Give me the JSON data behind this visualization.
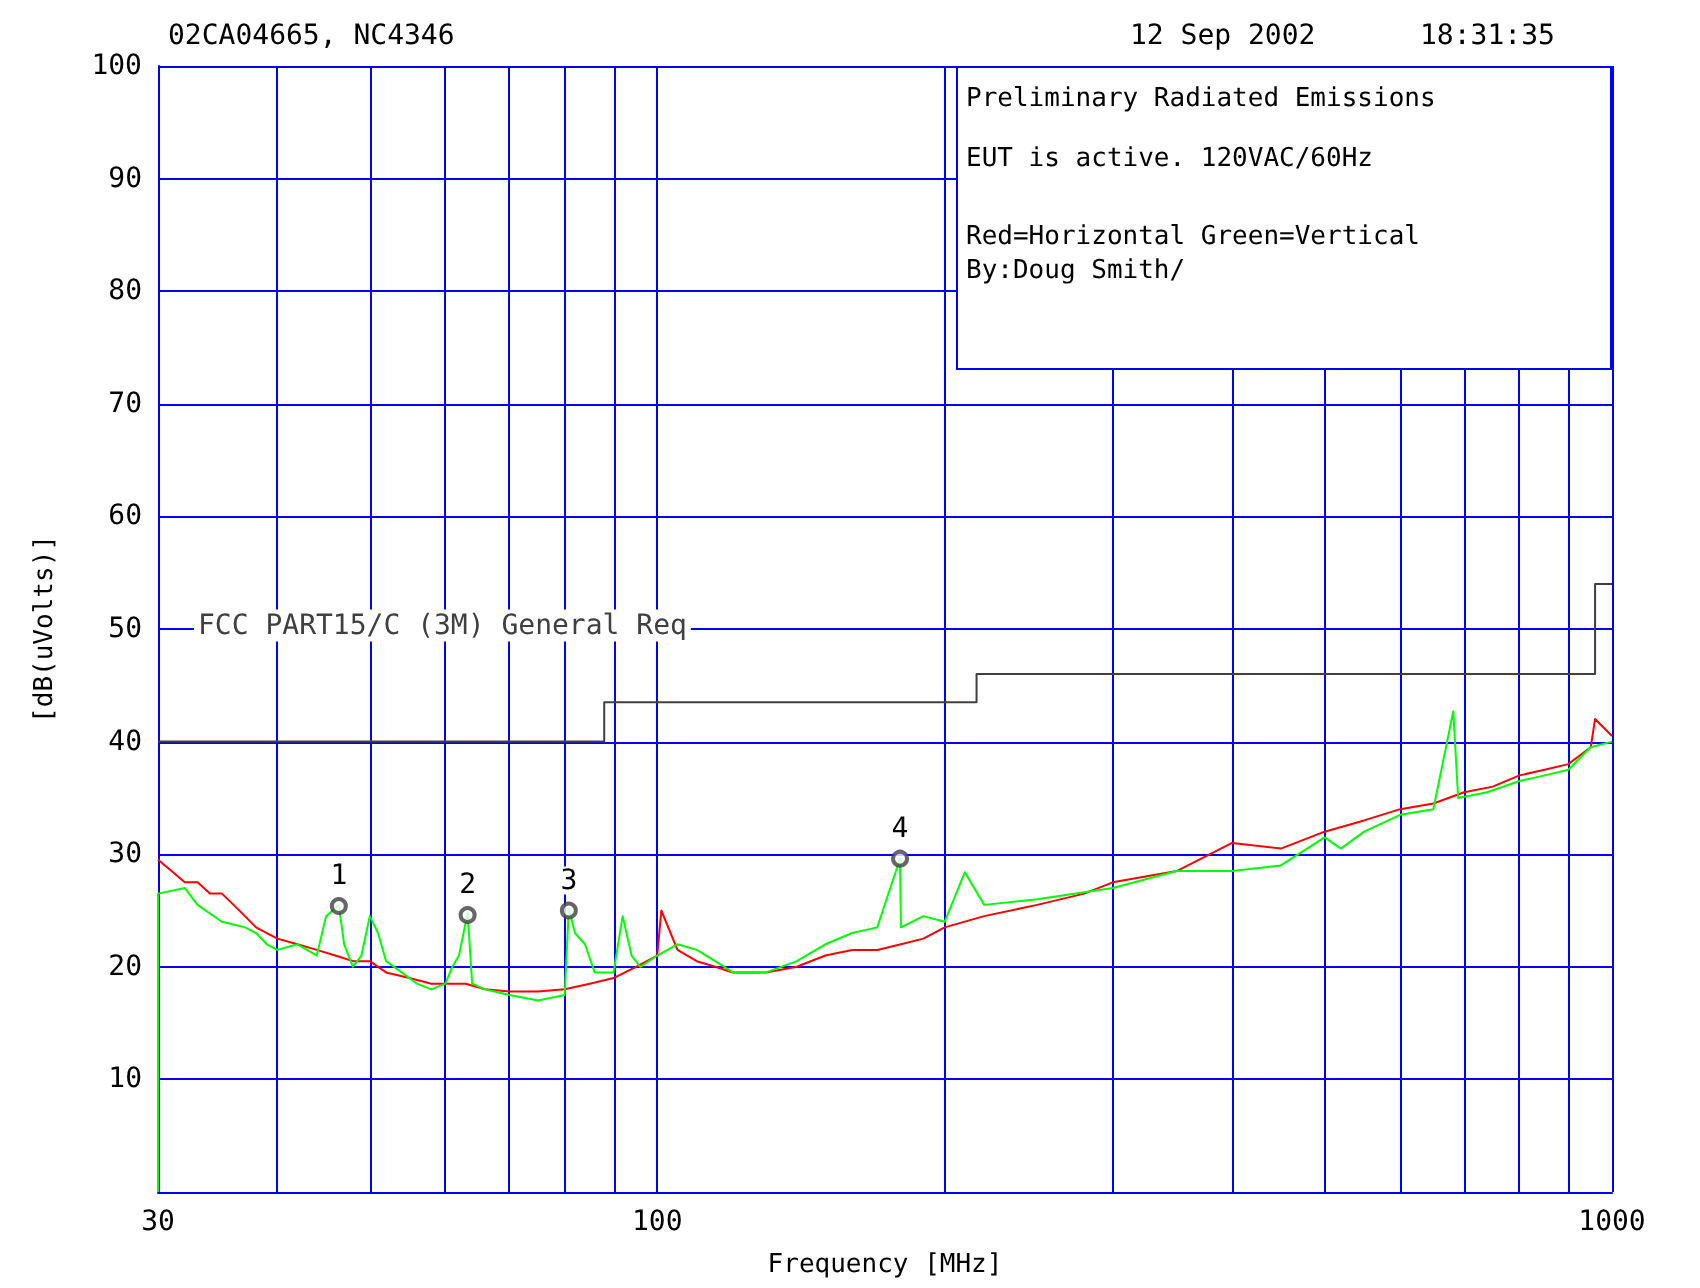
{
  "chart_data": {
    "type": "line",
    "xlabel": "Frequency [MHz]",
    "ylabel": "[dB(uVolts)]",
    "annotations": [
      "02CA04665, NC4346",
      "12 Sep 2002",
      "18:31:35",
      "Preliminary Radiated Emissions",
      "EUT is active. 120VAC/60Hz",
      "Red=Horizontal Green=Vertical",
      "By:Doug Smith/",
      {
        "text": "1",
        "x": 46.4,
        "y": 25.4
      },
      {
        "text": "2",
        "x": 63.3,
        "y": 24.6
      },
      {
        "text": "3",
        "x": 80.8,
        "y": 25.0
      },
      {
        "text": "4",
        "x": 179.6,
        "y": 29.6
      }
    ],
    "log": "x",
    "xlim": [
      30,
      1000
    ],
    "ylim": [
      0,
      100
    ],
    "xticks": [
      30,
      {
        "value": 40,
        "label": null
      },
      {
        "value": 50,
        "label": null
      },
      {
        "value": 60,
        "label": null
      },
      {
        "value": 70,
        "label": null
      },
      {
        "value": 80,
        "label": null
      },
      {
        "value": 90,
        "label": null
      },
      100,
      {
        "value": 200,
        "label": null
      },
      {
        "value": 300,
        "label": null
      },
      {
        "value": 400,
        "label": null
      },
      {
        "value": 500,
        "label": null
      },
      {
        "value": 600,
        "label": null
      },
      {
        "value": 700,
        "label": null
      },
      {
        "value": 800,
        "label": null
      },
      {
        "value": 900,
        "label": null
      },
      1000
    ],
    "yticks": [
      {
        "value": 0,
        "label": null
      },
      10,
      20,
      30,
      40,
      50,
      60,
      70,
      80,
      90,
      100
    ],
    "grid": true,
    "legend": false,
    "marker": "none",
    "series": [
      {
        "name": "FCC PART15/C (3M) General Req",
        "color": "#404040",
        "x": [
          30,
          88,
          88,
          216,
          216,
          960,
          960,
          1000
        ],
        "values": [
          40,
          40,
          43.5,
          43.5,
          46,
          46,
          54,
          54
        ]
      },
      {
        "color": "#ff0000",
        "x": [
          30,
          31,
          32,
          33,
          34,
          35,
          36,
          37,
          38,
          40,
          42,
          44,
          46,
          48,
          50,
          52,
          55,
          58,
          60,
          63,
          66,
          70,
          75,
          80,
          85,
          90,
          95,
          100,
          101,
          105,
          110,
          115,
          120,
          130,
          140,
          150,
          160,
          170,
          180,
          190,
          200,
          220,
          250,
          280,
          300,
          350,
          400,
          450,
          500,
          550,
          600,
          650,
          700,
          750,
          800,
          850,
          900,
          950,
          960,
          1000
        ],
        "values": [
          29.5,
          28.5,
          27.5,
          27.5,
          26.5,
          26.5,
          25.5,
          24.5,
          23.5,
          22.5,
          22,
          21.5,
          21,
          20.5,
          20.5,
          19.5,
          19,
          18.5,
          18.5,
          18.5,
          18,
          17.8,
          17.8,
          18,
          18.5,
          19,
          20,
          21,
          25,
          21.5,
          20.5,
          20,
          19.5,
          19.5,
          20,
          21,
          21.5,
          21.5,
          22,
          22.5,
          23.5,
          24.5,
          25.5,
          26.5,
          27.5,
          28.5,
          31,
          30.5,
          32,
          33,
          34,
          34.5,
          35.5,
          36,
          37,
          37.5,
          38,
          39.5,
          42,
          40.5
        ]
      },
      {
        "color": "#00ff00",
        "x": [
          30,
          30,
          32,
          33,
          35,
          37,
          38,
          39,
          40,
          42,
          44,
          45,
          46.4,
          47,
          48,
          49,
          50,
          51,
          52,
          54,
          56,
          58,
          60,
          61,
          62,
          63.3,
          64,
          66,
          70,
          75,
          80,
          80.8,
          82,
          84,
          86,
          90,
          92,
          94,
          96,
          100,
          105,
          110,
          115,
          120,
          130,
          140,
          150,
          160,
          170,
          179.6,
          180,
          190,
          200,
          210,
          220,
          250,
          300,
          350,
          400,
          450,
          500,
          520,
          550,
          600,
          650,
          682,
          690,
          740,
          800,
          850,
          900,
          950,
          1000
        ],
        "values": [
          0,
          26.5,
          27,
          25.5,
          24,
          23.5,
          23,
          22,
          21.5,
          22,
          21,
          24.5,
          25.5,
          22,
          20,
          21,
          24.5,
          23,
          20.5,
          19.5,
          18.5,
          18,
          18.5,
          20,
          21,
          24.8,
          18.5,
          18,
          17.5,
          17,
          17.5,
          25.2,
          23,
          22,
          19.5,
          19.5,
          24.5,
          21,
          20,
          21,
          22,
          21.5,
          20.5,
          19.5,
          19.5,
          20.5,
          22,
          23,
          23.5,
          29.6,
          23.5,
          24.5,
          24,
          28.4,
          25.5,
          26,
          27,
          28.5,
          28.5,
          29,
          31.5,
          30.5,
          32,
          33.5,
          34,
          42.7,
          35,
          35.5,
          36.5,
          37,
          37.5,
          39.5,
          40
        ]
      },
      {
        "type": "scatter",
        "marker": "circle",
        "color": "#404040",
        "x": [
          46.4,
          63.3,
          80.8,
          179.6
        ],
        "values": [
          25.4,
          24.6,
          25.0,
          29.6
        ]
      }
    ]
  }
}
